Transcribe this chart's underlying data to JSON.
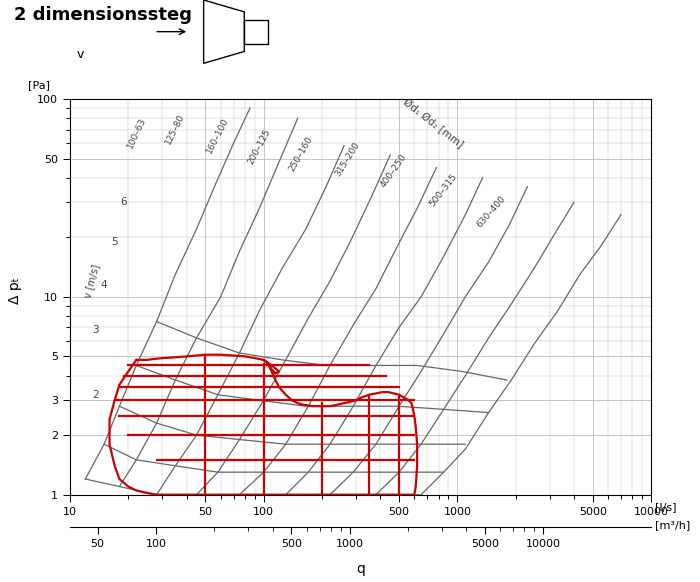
{
  "title": "2 dimensionssteg",
  "ylabel_pa": "[Pa]",
  "xlabel_ls": "[l/s]",
  "xlabel_m3h": "[m³/h]",
  "xlabel_q": "q",
  "xlim": [
    10,
    10000
  ],
  "ylim": [
    1,
    100
  ],
  "grid_color": "#bbbbbb",
  "curve_color": "#666666",
  "red_color": "#cc0000",
  "background_color": "#ffffff",
  "pipe_labels": [
    "100–63",
    "125–80",
    "160–100",
    "200–125",
    "250–160",
    "315–200",
    "400–250",
    "500–315",
    "630–400"
  ],
  "pipe_label_rotations": [
    65,
    64,
    63,
    62,
    60,
    58,
    55,
    52,
    49
  ],
  "pipe_label_q": [
    22,
    35,
    58,
    95,
    155,
    270,
    470,
    850,
    1500
  ],
  "pipe_label_dp": [
    55,
    58,
    52,
    46,
    42,
    40,
    35,
    28,
    22
  ],
  "vel_labels": [
    "2",
    "3",
    "4",
    "5",
    "6"
  ],
  "vel_label_q": [
    13.5,
    13.5,
    15,
    17,
    19
  ],
  "vel_label_dp": [
    3.2,
    6.8,
    11.5,
    19,
    30
  ]
}
